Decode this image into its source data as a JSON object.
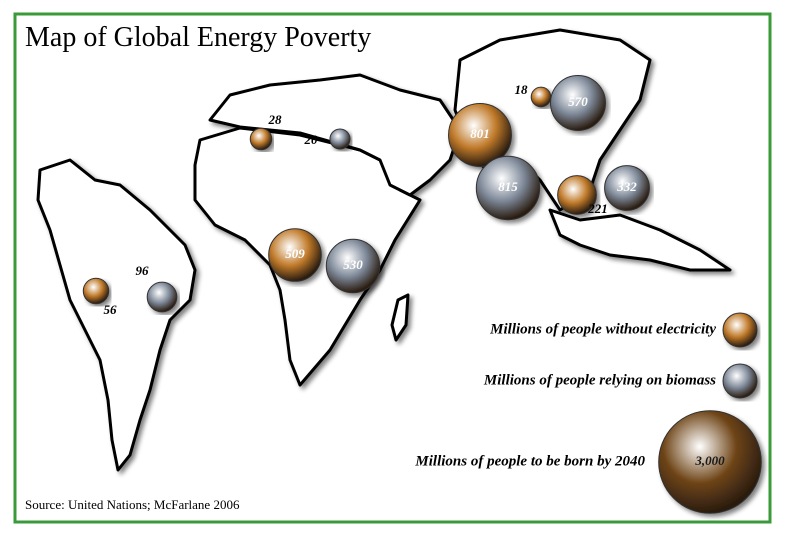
{
  "title": "Map of Global Energy Poverty",
  "source": "Source: United Nations; McFarlane 2006",
  "legend": [
    {
      "label": "Millions of people without electricity",
      "color": "#c07a2a"
    },
    {
      "label": "Millions of people relying on biomass",
      "color": "#7d8898"
    },
    {
      "label": "Millions of people to be born by 2040",
      "value": 3000,
      "value_label": "3,000",
      "color": "#6e4416"
    }
  ],
  "without_electricity": [
    56,
    28,
    509,
    801,
    18,
    221
  ],
  "relying_on_biomass": [
    96,
    20,
    530,
    815,
    570,
    332
  ]
}
